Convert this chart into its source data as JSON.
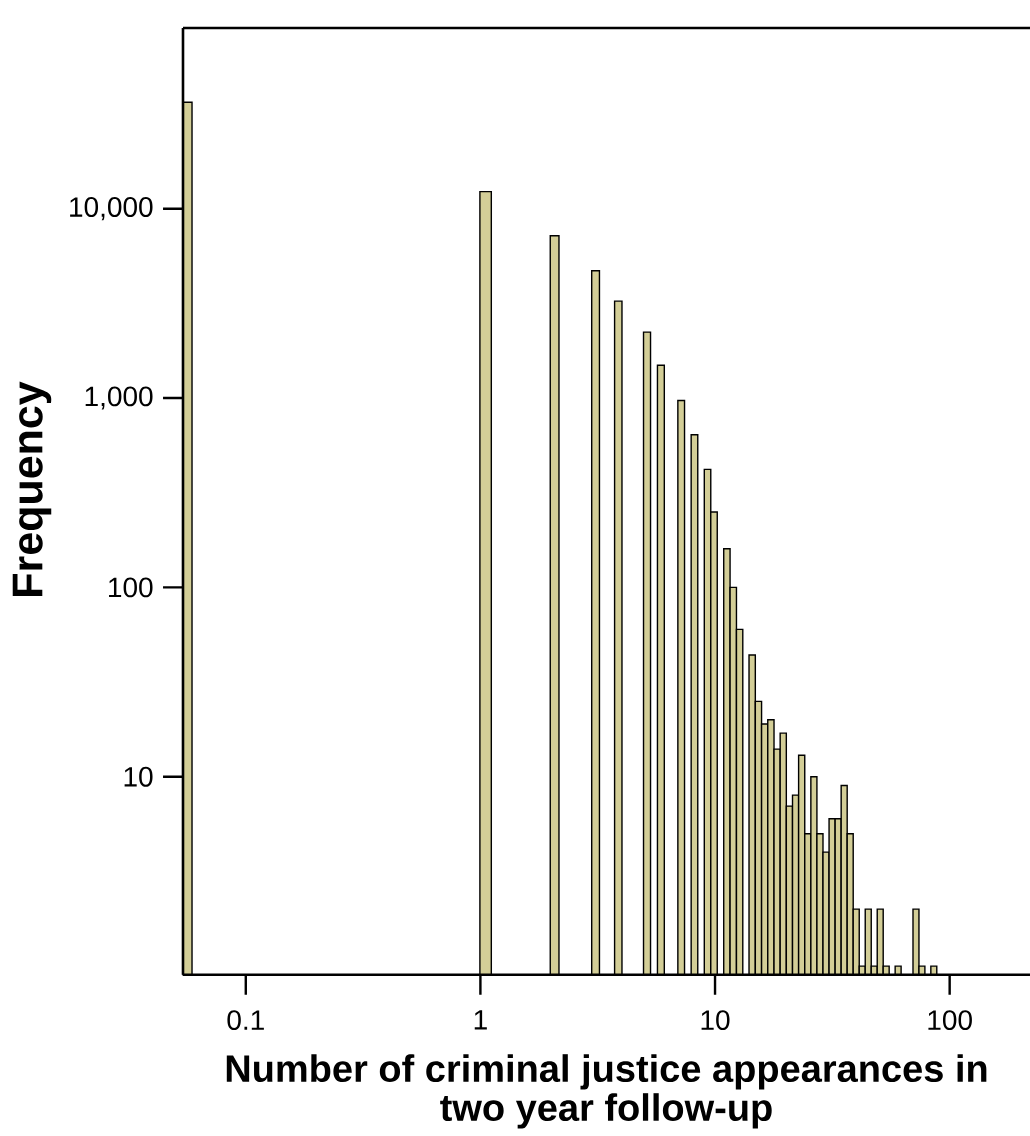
{
  "chart_data": {
    "type": "histogram",
    "xlabel": "Number of criminal justice appearances in two year follow-up",
    "ylabel": "Frequency",
    "bins": [
      0.054,
      0.059,
      0.995,
      1.113,
      1.985,
      2.162,
      2.981,
      3.217,
      3.732,
      4.012,
      4.957,
      5.31,
      5.683,
      6.079,
      6.943,
      7.414,
      7.913,
      8.441,
      9,
      9.59,
      10.22,
      10.89,
      11.59,
      12.34,
      13.13,
      13.96,
      14.85,
      15.79,
      16.78,
      17.84,
      18.95,
      20.13,
      21.39,
      22.71,
      24.12,
      25.61,
      27.18,
      28.85,
      30.62,
      32.5,
      34.48,
      36.58,
      38.81,
      41.17,
      43.67,
      46.32,
      49.12,
      52.09,
      55.23,
      58.57,
      62.1,
      69.79,
      73.99,
      78.43,
      83.14,
      88.13
    ],
    "values": [
      36500,
      null,
      12300,
      null,
      7200,
      null,
      4700,
      null,
      3250,
      null,
      2230,
      null,
      1490,
      null,
      970,
      null,
      640,
      null,
      420,
      250,
      null,
      160,
      100,
      60,
      null,
      44,
      25,
      19,
      20,
      14,
      17,
      7,
      8,
      13,
      5,
      10,
      5,
      4,
      6,
      6,
      9,
      5,
      2,
      1,
      2,
      1,
      2,
      1,
      null,
      1,
      null,
      2,
      1,
      null,
      1
    ],
    "color": "#d3ce97",
    "log": "xy",
    "xlim": [
      0.054,
      220
    ],
    "ylim": [
      0.9,
      90000
    ],
    "xticks": [
      0.1,
      1,
      10,
      100
    ],
    "yticks": [
      10,
      100,
      {
        "value": 1000,
        "label": "1,000"
      },
      {
        "value": 10000,
        "label": "10,000"
      }
    ]
  }
}
